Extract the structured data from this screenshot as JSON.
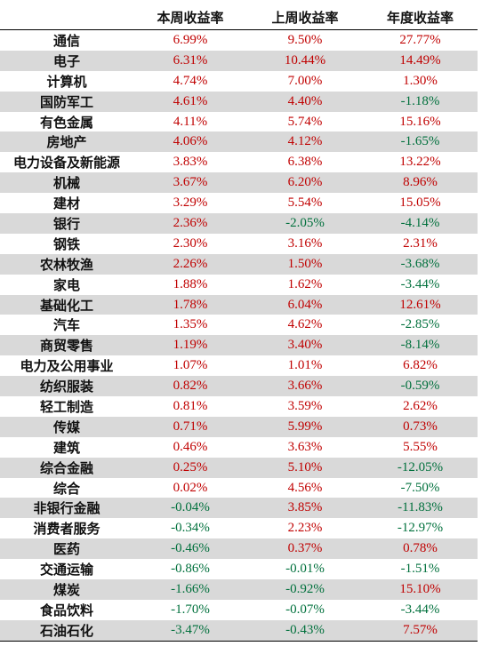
{
  "colors": {
    "positive": "#c00000",
    "negative": "#00703c",
    "shade": "#d9d9d9"
  },
  "headers": [
    "",
    "本周收益率",
    "上周收益率",
    "年度收益率"
  ],
  "rows": [
    [
      "通信",
      "6.99%",
      "9.50%",
      "27.77%"
    ],
    [
      "电子",
      "6.31%",
      "10.44%",
      "14.49%"
    ],
    [
      "计算机",
      "4.74%",
      "7.00%",
      "1.30%"
    ],
    [
      "国防军工",
      "4.61%",
      "4.40%",
      "-1.18%"
    ],
    [
      "有色金属",
      "4.11%",
      "5.74%",
      "15.16%"
    ],
    [
      "房地产",
      "4.06%",
      "4.12%",
      "-1.65%"
    ],
    [
      "电力设备及新能源",
      "3.83%",
      "6.38%",
      "13.22%"
    ],
    [
      "机械",
      "3.67%",
      "6.20%",
      "8.96%"
    ],
    [
      "建材",
      "3.29%",
      "5.54%",
      "15.05%"
    ],
    [
      "银行",
      "2.36%",
      "-2.05%",
      "-4.14%"
    ],
    [
      "钢铁",
      "2.30%",
      "3.16%",
      "2.31%"
    ],
    [
      "农林牧渔",
      "2.26%",
      "1.50%",
      "-3.68%"
    ],
    [
      "家电",
      "1.88%",
      "1.62%",
      "-3.44%"
    ],
    [
      "基础化工",
      "1.78%",
      "6.04%",
      "12.61%"
    ],
    [
      "汽车",
      "1.35%",
      "4.62%",
      "-2.85%"
    ],
    [
      "商贸零售",
      "1.19%",
      "3.40%",
      "-8.14%"
    ],
    [
      "电力及公用事业",
      "1.07%",
      "1.01%",
      "6.82%"
    ],
    [
      "纺织服装",
      "0.82%",
      "3.66%",
      "-0.59%"
    ],
    [
      "轻工制造",
      "0.81%",
      "3.59%",
      "2.62%"
    ],
    [
      "传媒",
      "0.71%",
      "5.99%",
      "0.73%"
    ],
    [
      "建筑",
      "0.46%",
      "3.63%",
      "5.55%"
    ],
    [
      "综合金融",
      "0.25%",
      "5.10%",
      "-12.05%"
    ],
    [
      "综合",
      "0.02%",
      "4.56%",
      "-7.50%"
    ],
    [
      "非银行金融",
      "-0.04%",
      "3.85%",
      "-11.83%"
    ],
    [
      "消费者服务",
      "-0.34%",
      "2.23%",
      "-12.97%"
    ],
    [
      "医药",
      "-0.46%",
      "0.37%",
      "0.78%"
    ],
    [
      "交通运输",
      "-0.86%",
      "-0.01%",
      "-1.51%"
    ],
    [
      "煤炭",
      "-1.66%",
      "-0.92%",
      "15.10%"
    ],
    [
      "食品饮料",
      "-1.70%",
      "-0.07%",
      "-3.44%"
    ],
    [
      "石油石化",
      "-3.47%",
      "-0.43%",
      "7.57%"
    ]
  ]
}
